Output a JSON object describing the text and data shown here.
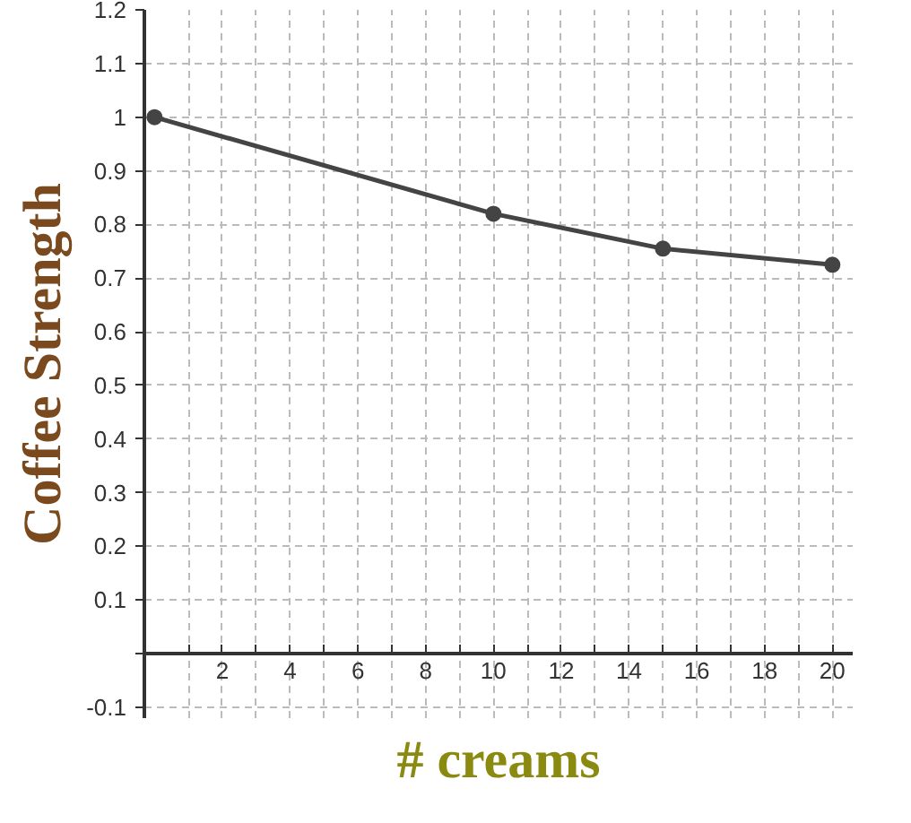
{
  "chart_data": {
    "type": "line",
    "xlabel": "# creams",
    "ylabel": "Coffee Strength",
    "x": [
      0,
      10,
      15,
      20
    ],
    "series": [
      {
        "color": "#444444",
        "values": [
          1.0,
          0.82,
          0.755,
          0.725
        ]
      }
    ],
    "xlim": [
      -0.3,
      20.6
    ],
    "ylim": [
      -0.12,
      1.2
    ],
    "xticks": [
      {
        "value": 1,
        "label": null
      },
      2,
      {
        "value": 3,
        "label": null
      },
      4,
      {
        "value": 5,
        "label": null
      },
      6,
      {
        "value": 7,
        "label": null
      },
      8,
      {
        "value": 9,
        "label": null
      },
      10,
      {
        "value": 11,
        "label": null
      },
      12,
      {
        "value": 13,
        "label": null
      },
      14,
      {
        "value": 15,
        "label": null
      },
      16,
      {
        "value": 17,
        "label": null
      },
      18,
      {
        "value": 19,
        "label": null
      },
      20
    ],
    "yticks": [
      -0.1,
      {
        "value": 0,
        "label": null
      },
      0.1,
      0.2,
      0.3,
      0.4,
      0.5,
      0.6,
      0.7,
      0.8,
      0.9,
      1,
      1.1,
      1.2
    ],
    "grid": true,
    "marker": "circle",
    "line_style": "solid"
  }
}
